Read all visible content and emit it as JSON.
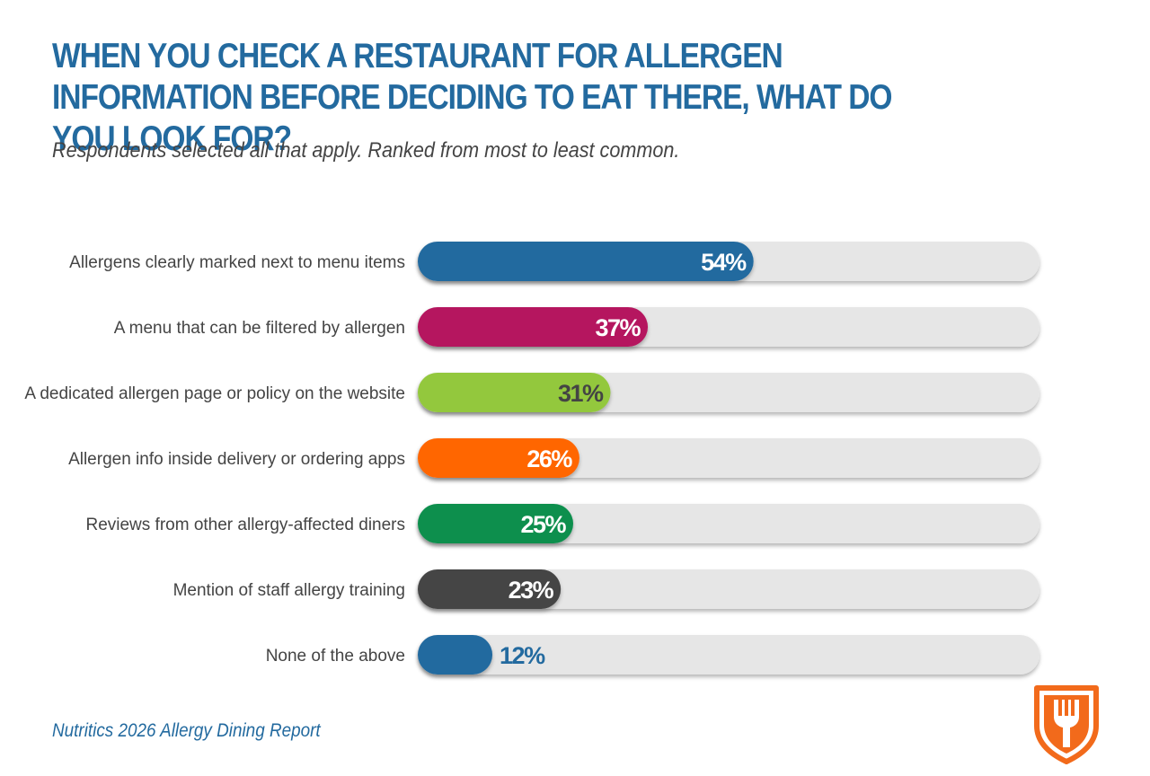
{
  "header": {
    "title": "When you check a restaurant for allergen information before deciding to eat there, what do you look for?",
    "subtitle": "Respondents selected all that apply. Ranked from most to least common."
  },
  "footer": {
    "source": "Nutritics 2026 Allergy Dining Report"
  },
  "logo": {
    "icon": "fork-shield-icon",
    "color": "#f26a1b"
  },
  "colors": {
    "track": "#e6e6e6",
    "label": "#444444"
  },
  "chart_data": {
    "type": "bar",
    "orientation": "horizontal",
    "title": "When you check a restaurant for allergen information before deciding to eat there, what do you look for?",
    "subtitle": "Respondents selected all that apply. Ranked from most to least common.",
    "unit": "%",
    "xlim": [
      0,
      100
    ],
    "grid": false,
    "legend": "none",
    "categories": [
      "Allergens clearly marked next to menu items",
      "A menu that can be filtered by allergen",
      "A dedicated allergen page or policy on the website",
      "Allergen info inside delivery or ordering apps",
      "Reviews from other allergy-affected diners",
      "Mention of staff allergy training",
      "None of the above"
    ],
    "values": [
      54,
      37,
      31,
      26,
      25,
      23,
      12
    ],
    "value_labels": [
      "54%",
      "37%",
      "31%",
      "26%",
      "25%",
      "23%",
      "12%"
    ],
    "bar_colors": [
      "#236a9f",
      "#b5195e",
      "#93c83e",
      "#ff6600",
      "#0a8f4e",
      "#444444",
      "#236a9f"
    ],
    "value_label_colors": [
      "#ffffff",
      "#ffffff",
      "#444444",
      "#ffffff",
      "#ffffff",
      "#ffffff",
      "#236a9f"
    ],
    "value_label_position": [
      "inside",
      "inside",
      "inside",
      "inside",
      "inside",
      "inside",
      "outside"
    ]
  }
}
